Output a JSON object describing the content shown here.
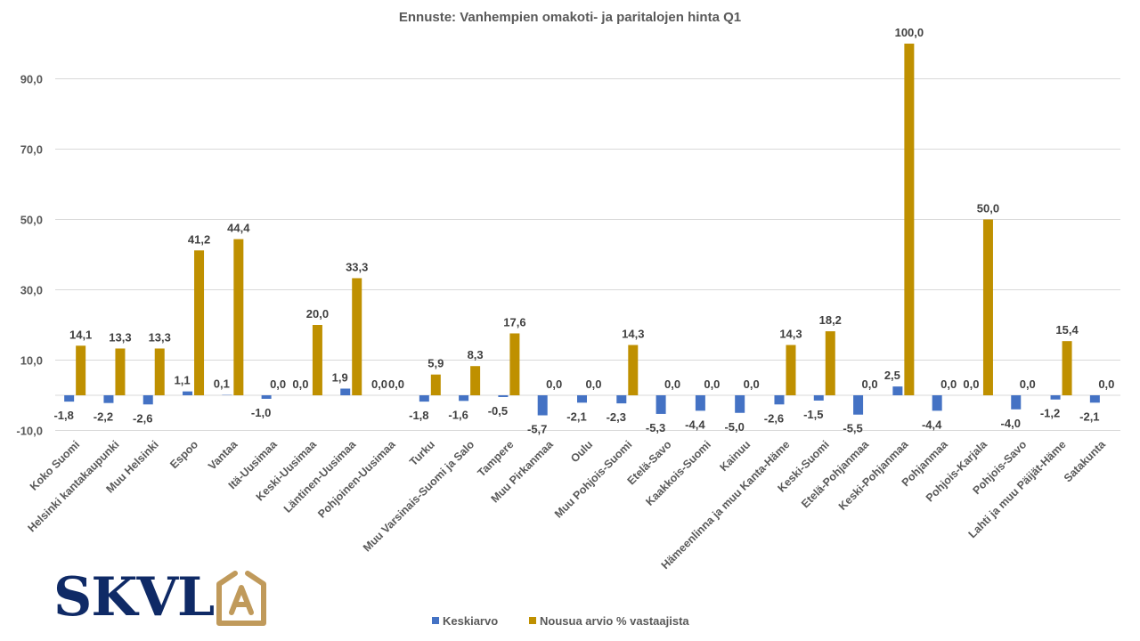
{
  "logo": {
    "text": "SKVL",
    "mark": "house-A"
  },
  "colors": {
    "series1": "#4472c4",
    "series2": "#bf9000",
    "grid": "#d9d9d9",
    "text": "#595959",
    "logo_navy": "#0f2a66",
    "logo_gold": "#c09a5b"
  },
  "chart_data": {
    "type": "bar",
    "title": "Ennuste: Vanhempien omakoti- ja paritalojen hinta Q1",
    "xlabel": "",
    "ylabel": "",
    "ylim": [
      -10,
      100
    ],
    "yticks": [
      -10,
      10,
      30,
      50,
      70,
      90
    ],
    "ytick_labels": [
      "-10,0",
      "10,0",
      "30,0",
      "50,0",
      "70,0",
      "90,0"
    ],
    "grid": true,
    "legend_position": "bottom",
    "categories": [
      "Koko Suomi",
      "Helsinki kantakaupunki",
      "Muu Helsinki",
      "Espoo",
      "Vantaa",
      "Itä-Uusimaa",
      "Keski-Uusimaa",
      "Läntinen-Uusimaa",
      "Pohjoinen-Uusimaa",
      "Turku",
      "Muu Varsinais-Suomi ja Salo",
      "Tampere",
      "Muu Pirkanmaa",
      "Oulu",
      "Muu Pohjois-Suomi",
      "Etelä-Savo",
      "Kaakkois-Suomi",
      "Kainuu",
      "Hämeenlinna ja muu Kanta-Häme",
      "Keski-Suomi",
      "Etelä-Pohjanmaa",
      "Keski-Pohjanmaa",
      "Pohjanmaa",
      "Pohjois-Karjala",
      "Pohjois-Savo",
      "Lahti ja muu Päijät-Häme",
      "Satakunta"
    ],
    "series": [
      {
        "name": "Keskiarvo",
        "color": "#4472c4",
        "values": [
          -1.8,
          -2.2,
          -2.6,
          1.1,
          0.1,
          -1.0,
          0.0,
          1.9,
          0.0,
          -1.8,
          -1.6,
          -0.5,
          -5.7,
          -2.1,
          -2.3,
          -5.3,
          -4.4,
          -5.0,
          -2.6,
          -1.5,
          -5.5,
          2.5,
          -4.4,
          0.0,
          -4.0,
          -1.2,
          -2.1
        ],
        "labels": [
          "-1,8",
          "-2,2",
          "-2,6",
          "1,1",
          "0,1",
          "-1,0",
          "0,0",
          "1,9",
          "0,0",
          "-1,8",
          "-1,6",
          "-0,5",
          "-5,7",
          "-2,1",
          "-2,3",
          "-5,3",
          "-4,4",
          "-5,0",
          "-2,6",
          "-1,5",
          "-5,5",
          "2,5",
          "-4,4",
          "0,0",
          "-4,0",
          "-1,2",
          "-2,1"
        ]
      },
      {
        "name": "Nousua arvio % vastaajista",
        "color": "#bf9000",
        "values": [
          14.1,
          13.3,
          13.3,
          41.2,
          44.4,
          0.0,
          20.0,
          33.3,
          0.0,
          5.9,
          8.3,
          17.6,
          0.0,
          0.0,
          14.3,
          0.0,
          0.0,
          0.0,
          14.3,
          18.2,
          0.0,
          100.0,
          0.0,
          50.0,
          0.0,
          15.4,
          0.0
        ],
        "labels": [
          "14,1",
          "13,3",
          "13,3",
          "41,2",
          "44,4",
          "0,0",
          "20,0",
          "33,3",
          "0,0",
          "5,9",
          "8,3",
          "17,6",
          "0,0",
          "0,0",
          "14,3",
          "0,0",
          "0,0",
          "0,0",
          "14,3",
          "18,2",
          "0,0",
          "100,0",
          "0,0",
          "50,0",
          "0,0",
          "15,4",
          "0,0"
        ]
      }
    ]
  }
}
